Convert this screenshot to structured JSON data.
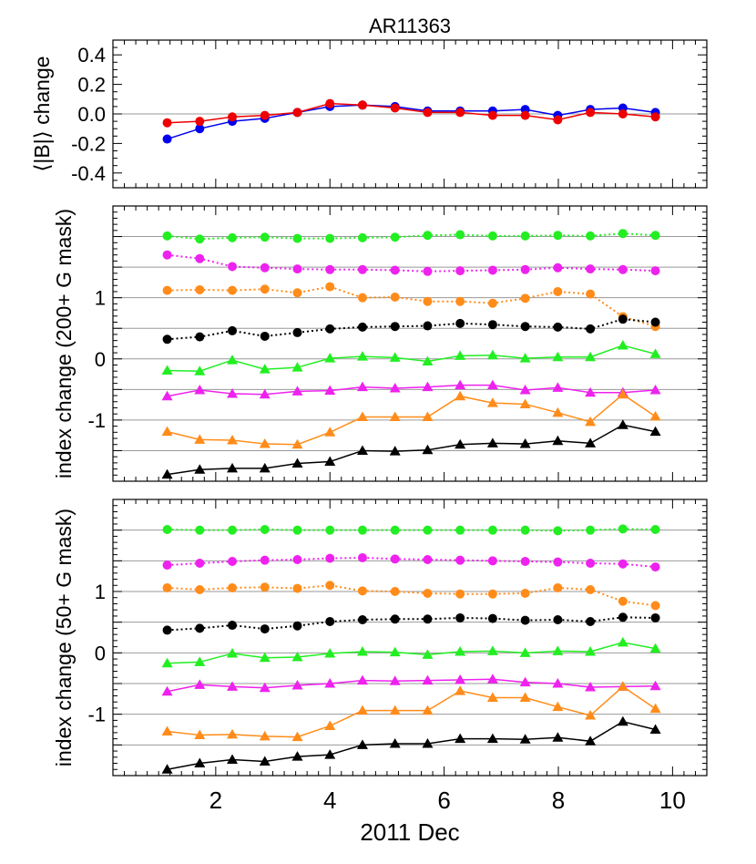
{
  "figure": {
    "title": "AR11363",
    "xlabel": "2011 Dec"
  },
  "colors": {
    "green": "#22ee22",
    "magenta": "#ee22ee",
    "orange": "#ff8c1a",
    "black": "#000000",
    "blue": "#0000ee",
    "red": "#ee0000",
    "grid": "#999999"
  },
  "chart_data": [
    {
      "type": "line",
      "ylabel": "⟨|B|⟩ change",
      "xlim": [
        0.2,
        10.6
      ],
      "ylim": [
        -0.5,
        0.5
      ],
      "xticks": [
        2,
        4,
        6,
        8,
        10
      ],
      "yticks": [
        -0.4,
        -0.2,
        0.0,
        0.2,
        0.4
      ],
      "ytick_labels": [
        "-0.4",
        "-0.2",
        "0.0",
        "0.2",
        "0.4"
      ],
      "hlines": [
        0
      ],
      "x": [
        1.15,
        1.72,
        2.29,
        2.86,
        3.43,
        4.0,
        4.57,
        5.14,
        5.71,
        6.28,
        6.85,
        7.42,
        7.99,
        8.56,
        9.13,
        9.7
      ],
      "series": [
        {
          "color": "blue",
          "marker": "circle",
          "line": "solid",
          "values": [
            -0.17,
            -0.1,
            -0.05,
            -0.03,
            0.01,
            0.05,
            0.06,
            0.05,
            0.02,
            0.02,
            0.02,
            0.03,
            -0.01,
            0.03,
            0.04,
            0.01
          ]
        },
        {
          "color": "red",
          "marker": "circle",
          "line": "solid",
          "values": [
            -0.06,
            -0.05,
            -0.02,
            -0.01,
            0.01,
            0.07,
            0.06,
            0.04,
            0.01,
            0.01,
            -0.01,
            -0.01,
            -0.04,
            0.01,
            0.0,
            -0.02
          ]
        }
      ]
    },
    {
      "type": "line",
      "ylabel": "index change (200+ G mask)",
      "xlim": [
        0.2,
        10.6
      ],
      "ylim": [
        -2.0,
        2.5
      ],
      "xticks": [
        2,
        4,
        6,
        8,
        10
      ],
      "yticks": [
        -1,
        0,
        1
      ],
      "ytick_labels": [
        "-1",
        "0",
        "1"
      ],
      "hlines": [
        -1.5,
        -1.0,
        -0.5,
        0.0,
        0.5,
        1.0,
        1.5,
        2.0
      ],
      "x": [
        1.15,
        1.72,
        2.29,
        2.86,
        3.43,
        4.0,
        4.57,
        5.14,
        5.71,
        6.28,
        6.85,
        7.42,
        7.99,
        8.56,
        9.13,
        9.7
      ],
      "series": [
        {
          "color": "green",
          "marker": "circle",
          "line": "dotted",
          "values": [
            2.01,
            1.96,
            1.98,
            1.99,
            1.97,
            1.97,
            1.98,
            1.99,
            2.02,
            2.03,
            2.01,
            2.01,
            2.02,
            2.01,
            2.05,
            2.02
          ]
        },
        {
          "color": "magenta",
          "marker": "circle",
          "line": "dotted",
          "values": [
            1.7,
            1.64,
            1.51,
            1.49,
            1.47,
            1.46,
            1.46,
            1.45,
            1.43,
            1.44,
            1.45,
            1.46,
            1.49,
            1.47,
            1.46,
            1.44
          ]
        },
        {
          "color": "orange",
          "marker": "circle",
          "line": "dotted",
          "values": [
            1.12,
            1.13,
            1.12,
            1.14,
            1.08,
            1.18,
            1.0,
            1.01,
            0.94,
            0.94,
            0.91,
            0.99,
            1.1,
            1.06,
            0.69,
            0.53
          ]
        },
        {
          "color": "black",
          "marker": "circle",
          "line": "dotted",
          "values": [
            0.32,
            0.36,
            0.46,
            0.37,
            0.43,
            0.49,
            0.52,
            0.53,
            0.54,
            0.58,
            0.56,
            0.53,
            0.52,
            0.49,
            0.65,
            0.6
          ]
        },
        {
          "color": "green",
          "marker": "triangle",
          "line": "solid",
          "values": [
            -0.19,
            -0.2,
            -0.02,
            -0.17,
            -0.14,
            0.01,
            0.04,
            0.02,
            -0.04,
            0.05,
            0.06,
            0.01,
            0.03,
            0.03,
            0.22,
            0.08
          ]
        },
        {
          "color": "magenta",
          "marker": "triangle",
          "line": "solid",
          "values": [
            -0.61,
            -0.51,
            -0.57,
            -0.58,
            -0.53,
            -0.52,
            -0.46,
            -0.48,
            -0.46,
            -0.43,
            -0.43,
            -0.51,
            -0.47,
            -0.55,
            -0.55,
            -0.51
          ]
        },
        {
          "color": "orange",
          "marker": "triangle",
          "line": "solid",
          "values": [
            -1.19,
            -1.32,
            -1.33,
            -1.39,
            -1.4,
            -1.2,
            -0.95,
            -0.95,
            -0.95,
            -0.61,
            -0.72,
            -0.74,
            -0.88,
            -1.03,
            -0.58,
            -0.94
          ]
        },
        {
          "color": "black",
          "marker": "triangle",
          "line": "solid",
          "values": [
            -1.89,
            -1.81,
            -1.79,
            -1.79,
            -1.71,
            -1.68,
            -1.5,
            -1.51,
            -1.49,
            -1.4,
            -1.38,
            -1.39,
            -1.34,
            -1.38,
            -1.08,
            -1.19
          ]
        }
      ]
    },
    {
      "type": "line",
      "ylabel": "index change (50+ G mask)",
      "xlim": [
        0.2,
        10.6
      ],
      "ylim": [
        -2.0,
        2.5
      ],
      "xticks": [
        2,
        4,
        6,
        8,
        10
      ],
      "yticks": [
        -1,
        0,
        1
      ],
      "ytick_labels": [
        "-1",
        "0",
        "1"
      ],
      "hlines": [
        -1.5,
        -1.0,
        -0.5,
        0.0,
        0.5,
        1.0,
        1.5,
        2.0
      ],
      "x": [
        1.15,
        1.72,
        2.29,
        2.86,
        3.43,
        4.0,
        4.57,
        5.14,
        5.71,
        6.28,
        6.85,
        7.42,
        7.99,
        8.56,
        9.13,
        9.7
      ],
      "series": [
        {
          "color": "green",
          "marker": "circle",
          "line": "dotted",
          "values": [
            2.01,
            2.0,
            2.0,
            2.01,
            2.0,
            2.0,
            2.0,
            2.0,
            2.0,
            2.0,
            2.0,
            2.0,
            1.99,
            2.0,
            2.02,
            2.01
          ]
        },
        {
          "color": "magenta",
          "marker": "circle",
          "line": "dotted",
          "values": [
            1.43,
            1.46,
            1.49,
            1.51,
            1.52,
            1.54,
            1.55,
            1.53,
            1.52,
            1.51,
            1.5,
            1.49,
            1.48,
            1.46,
            1.45,
            1.4
          ]
        },
        {
          "color": "orange",
          "marker": "circle",
          "line": "dotted",
          "values": [
            1.06,
            1.03,
            1.06,
            1.07,
            1.05,
            1.1,
            1.01,
            1.0,
            0.97,
            0.96,
            0.96,
            0.97,
            1.06,
            1.03,
            0.84,
            0.77
          ]
        },
        {
          "color": "black",
          "marker": "circle",
          "line": "dotted",
          "values": [
            0.37,
            0.4,
            0.45,
            0.39,
            0.44,
            0.51,
            0.54,
            0.55,
            0.55,
            0.57,
            0.56,
            0.53,
            0.54,
            0.51,
            0.58,
            0.57
          ]
        },
        {
          "color": "green",
          "marker": "triangle",
          "line": "solid",
          "values": [
            -0.17,
            -0.15,
            -0.01,
            -0.08,
            -0.07,
            -0.01,
            0.02,
            0.01,
            -0.03,
            0.02,
            0.03,
            0.0,
            0.03,
            0.02,
            0.17,
            0.07
          ]
        },
        {
          "color": "magenta",
          "marker": "triangle",
          "line": "solid",
          "values": [
            -0.63,
            -0.52,
            -0.55,
            -0.57,
            -0.53,
            -0.5,
            -0.45,
            -0.46,
            -0.45,
            -0.44,
            -0.43,
            -0.48,
            -0.5,
            -0.56,
            -0.55,
            -0.54
          ]
        },
        {
          "color": "orange",
          "marker": "triangle",
          "line": "solid",
          "values": [
            -1.28,
            -1.34,
            -1.33,
            -1.36,
            -1.37,
            -1.19,
            -0.94,
            -0.94,
            -0.94,
            -0.62,
            -0.73,
            -0.73,
            -0.88,
            -1.02,
            -0.55,
            -0.91
          ]
        },
        {
          "color": "black",
          "marker": "triangle",
          "line": "solid",
          "values": [
            -1.9,
            -1.8,
            -1.74,
            -1.77,
            -1.69,
            -1.66,
            -1.5,
            -1.48,
            -1.48,
            -1.4,
            -1.4,
            -1.41,
            -1.38,
            -1.44,
            -1.12,
            -1.25
          ]
        }
      ]
    }
  ]
}
